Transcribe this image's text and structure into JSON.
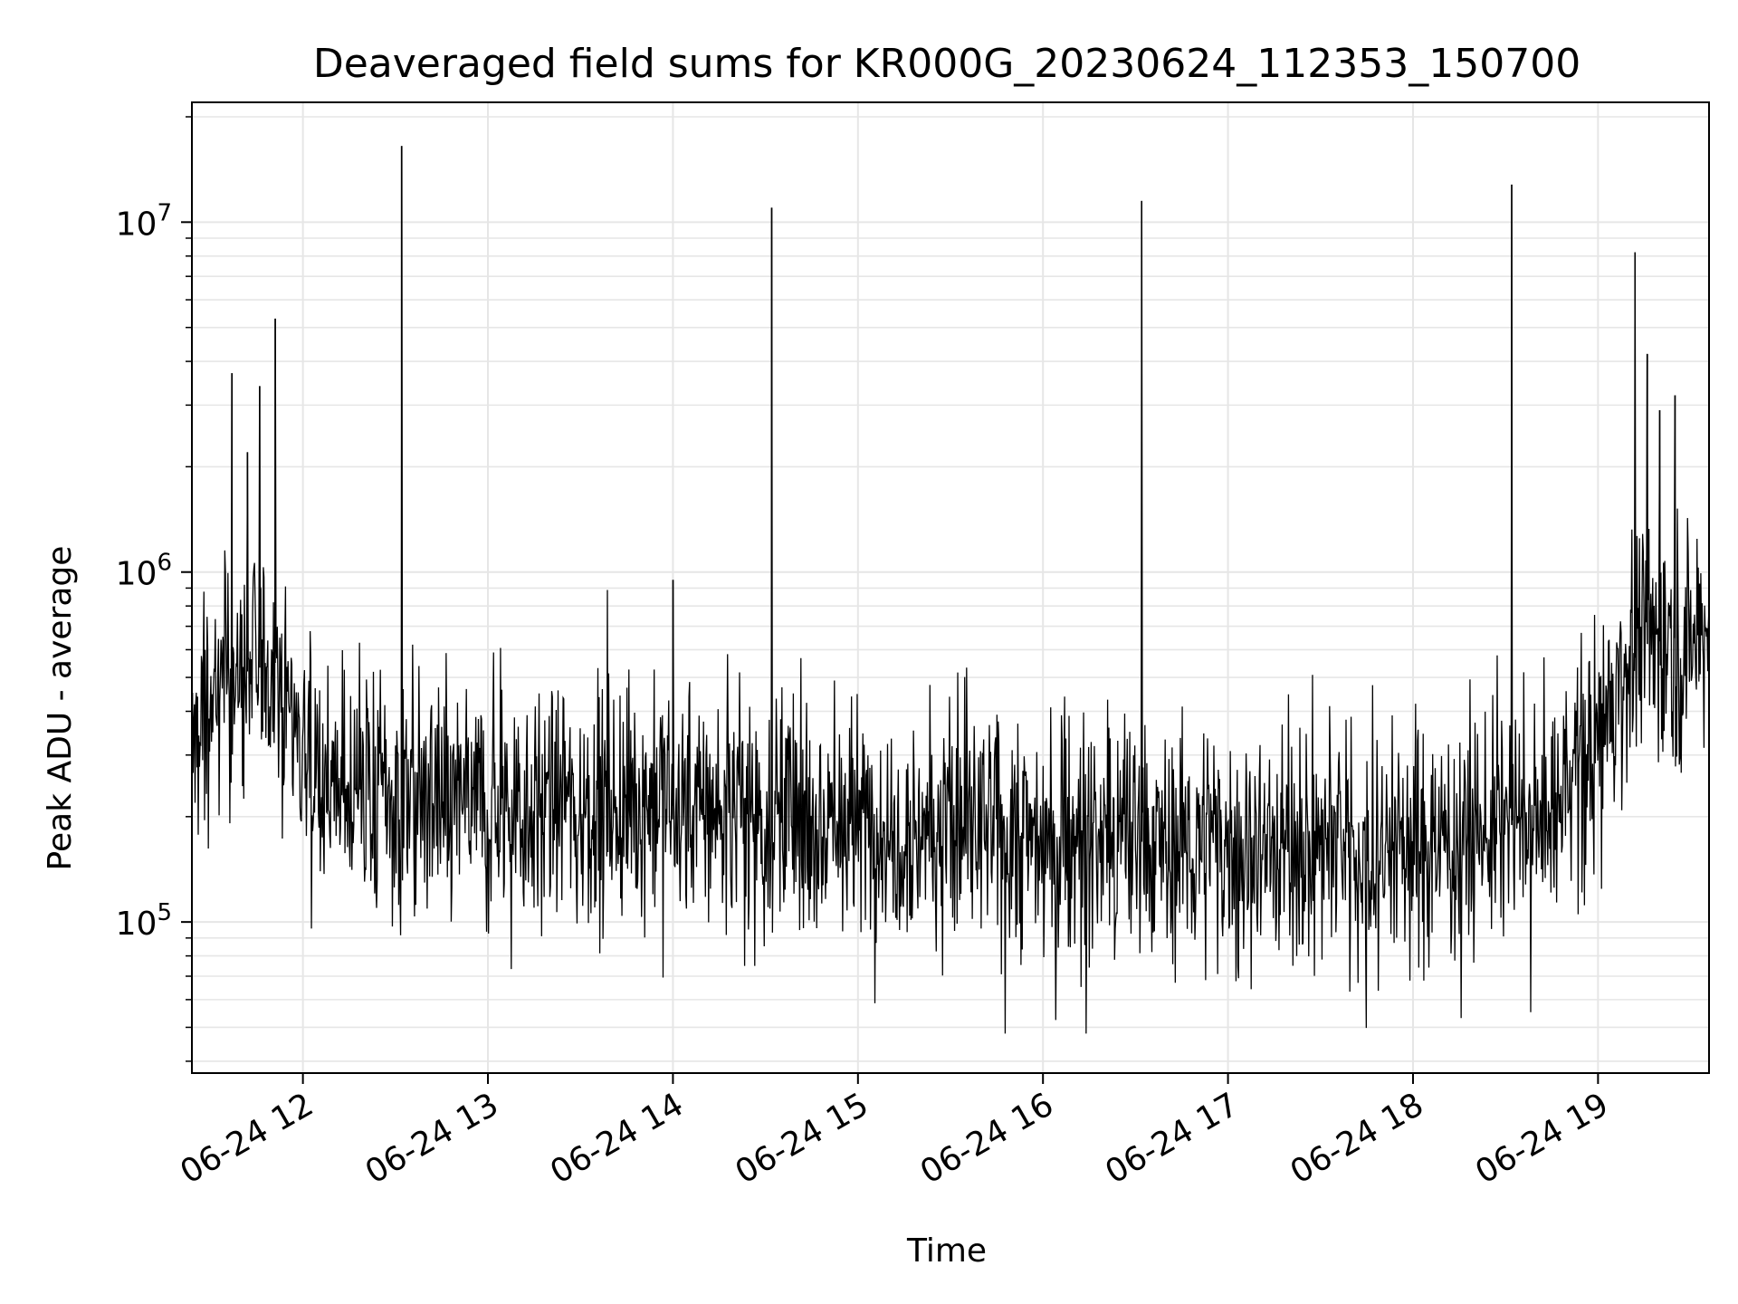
{
  "chart_data": {
    "type": "line",
    "title": "Deaveraged field sums for KR000G_20230624_112353_150700",
    "xlabel": "Time",
    "ylabel": "Peak ADU - average",
    "yscale": "log",
    "grid": true,
    "line_color": "#000000",
    "grid_color": "#e6e6e6",
    "xlim": [
      "2023-06-24 11:24",
      "2023-06-24 19:36"
    ],
    "ylim": [
      37000,
      22000000
    ],
    "x_ticks": [
      {
        "value": "2023-06-24 12:00",
        "label": "06-24 12"
      },
      {
        "value": "2023-06-24 13:00",
        "label": "06-24 13"
      },
      {
        "value": "2023-06-24 14:00",
        "label": "06-24 14"
      },
      {
        "value": "2023-06-24 15:00",
        "label": "06-24 15"
      },
      {
        "value": "2023-06-24 16:00",
        "label": "06-24 16"
      },
      {
        "value": "2023-06-24 17:00",
        "label": "06-24 17"
      },
      {
        "value": "2023-06-24 18:00",
        "label": "06-24 18"
      },
      {
        "value": "2023-06-24 19:00",
        "label": "06-24 19"
      }
    ],
    "y_ticks": [
      {
        "value": 100000,
        "base": "10",
        "exp": "5"
      },
      {
        "value": 1000000,
        "base": "10",
        "exp": "6"
      },
      {
        "value": 10000000,
        "base": "10",
        "exp": "7"
      }
    ],
    "baseline_trend": [
      {
        "x": "2023-06-24 11:24",
        "y": 300000
      },
      {
        "x": "2023-06-24 11:33",
        "y": 450000
      },
      {
        "x": "2023-06-24 11:42",
        "y": 520000
      },
      {
        "x": "2023-06-24 11:51",
        "y": 550000
      },
      {
        "x": "2023-06-24 12:00",
        "y": 330000
      },
      {
        "x": "2023-06-24 12:10",
        "y": 230000
      },
      {
        "x": "2023-06-24 13:00",
        "y": 220000
      },
      {
        "x": "2023-06-24 14:00",
        "y": 215000
      },
      {
        "x": "2023-06-24 15:00",
        "y": 195000
      },
      {
        "x": "2023-06-24 16:00",
        "y": 175000
      },
      {
        "x": "2023-06-24 17:00",
        "y": 165000
      },
      {
        "x": "2023-06-24 18:00",
        "y": 165000
      },
      {
        "x": "2023-06-24 18:45",
        "y": 200000
      },
      {
        "x": "2023-06-24 19:00",
        "y": 340000
      },
      {
        "x": "2023-06-24 19:06",
        "y": 480000
      },
      {
        "x": "2023-06-24 19:15",
        "y": 620000
      },
      {
        "x": "2023-06-24 19:36",
        "y": 680000
      }
    ],
    "spikes": [
      {
        "x": "2023-06-24 11:37",
        "y": 3700000
      },
      {
        "x": "2023-06-24 11:42",
        "y": 2200000
      },
      {
        "x": "2023-06-24 11:46",
        "y": 3400000
      },
      {
        "x": "2023-06-24 11:51",
        "y": 5300000
      },
      {
        "x": "2023-06-24 12:32",
        "y": 16500000
      },
      {
        "x": "2023-06-24 14:00",
        "y": 950000
      },
      {
        "x": "2023-06-24 14:32",
        "y": 11000000
      },
      {
        "x": "2023-06-24 16:32",
        "y": 11500000
      },
      {
        "x": "2023-06-24 18:32",
        "y": 12800000
      },
      {
        "x": "2023-06-24 19:12",
        "y": 8200000
      },
      {
        "x": "2023-06-24 19:16",
        "y": 4200000
      },
      {
        "x": "2023-06-24 19:20",
        "y": 2900000
      },
      {
        "x": "2023-06-24 19:25",
        "y": 3200000
      }
    ]
  }
}
